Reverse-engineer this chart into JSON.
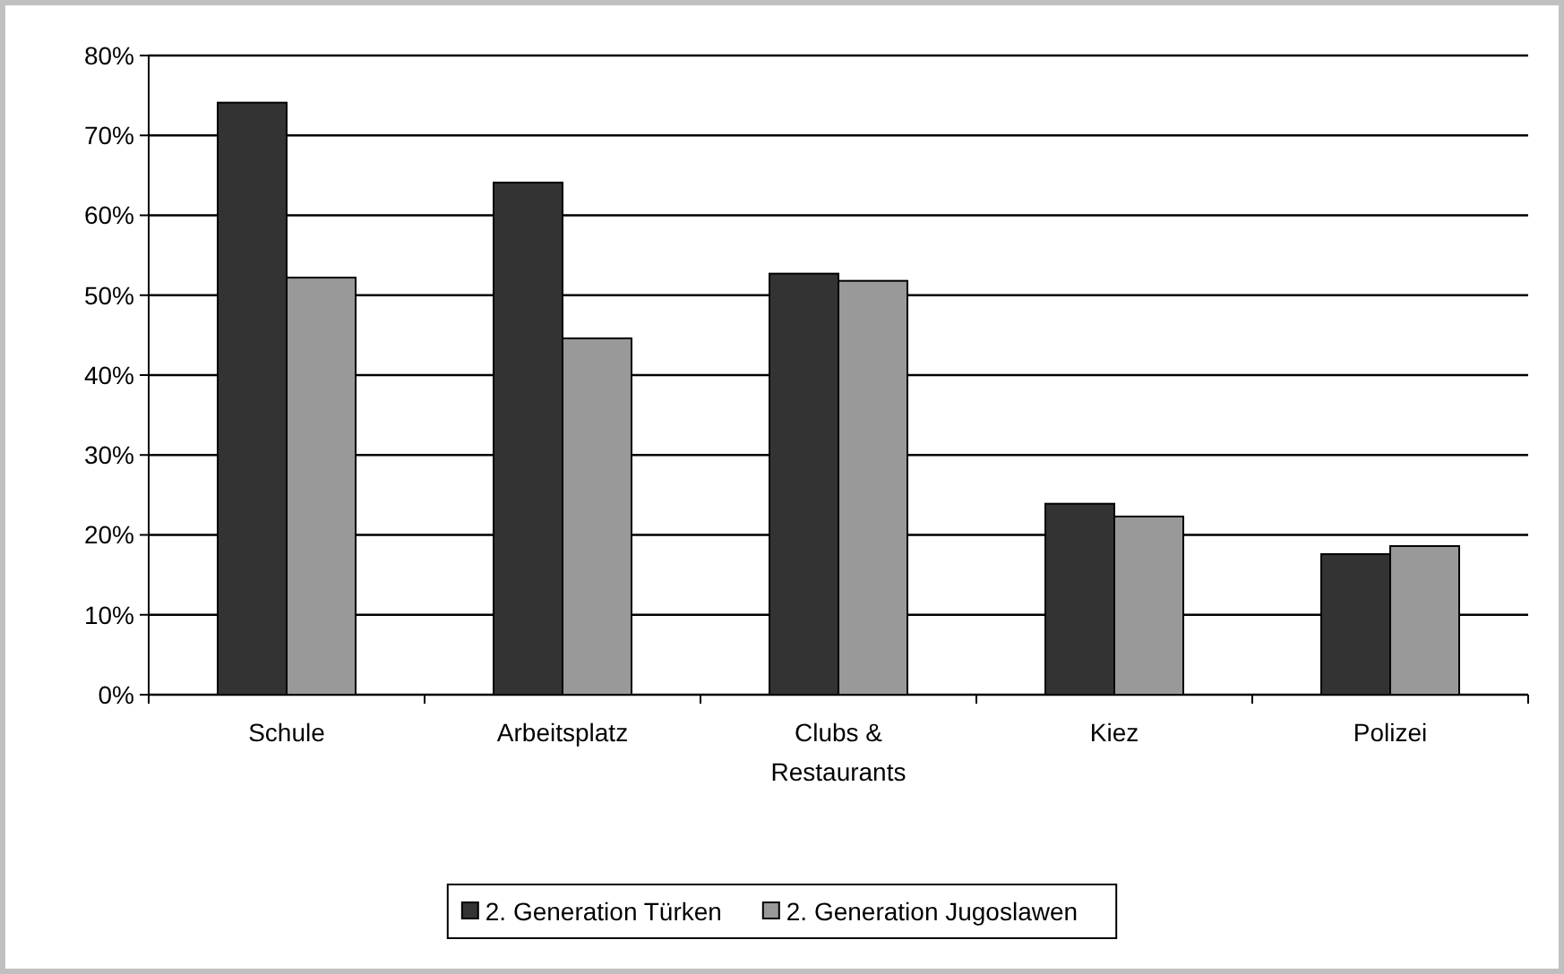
{
  "chart_data": {
    "type": "bar",
    "categories": [
      "Schule",
      "Arbeitsplatz",
      "Clubs & Restaurants",
      "Kiez",
      "Polizei"
    ],
    "series": [
      {
        "name": "2. Generation Türken",
        "color": "#333333",
        "values": [
          74.1,
          64.1,
          52.7,
          23.9,
          17.6
        ]
      },
      {
        "name": "2. Generation Jugoslawen",
        "color": "#999999",
        "values": [
          52.2,
          44.6,
          51.8,
          22.3,
          18.6
        ]
      }
    ],
    "ylim": [
      0,
      80
    ],
    "yticks": [
      {
        "value": 0,
        "label": "0%"
      },
      {
        "value": 10,
        "label": "10%"
      },
      {
        "value": 20,
        "label": "20%"
      },
      {
        "value": 30,
        "label": "30%"
      },
      {
        "value": 40,
        "label": "40%"
      },
      {
        "value": 50,
        "label": "50%"
      },
      {
        "value": 60,
        "label": "60%"
      },
      {
        "value": 70,
        "label": "70%"
      },
      {
        "value": 80,
        "label": "80%"
      }
    ],
    "grid": "y",
    "legend": "bottom"
  }
}
